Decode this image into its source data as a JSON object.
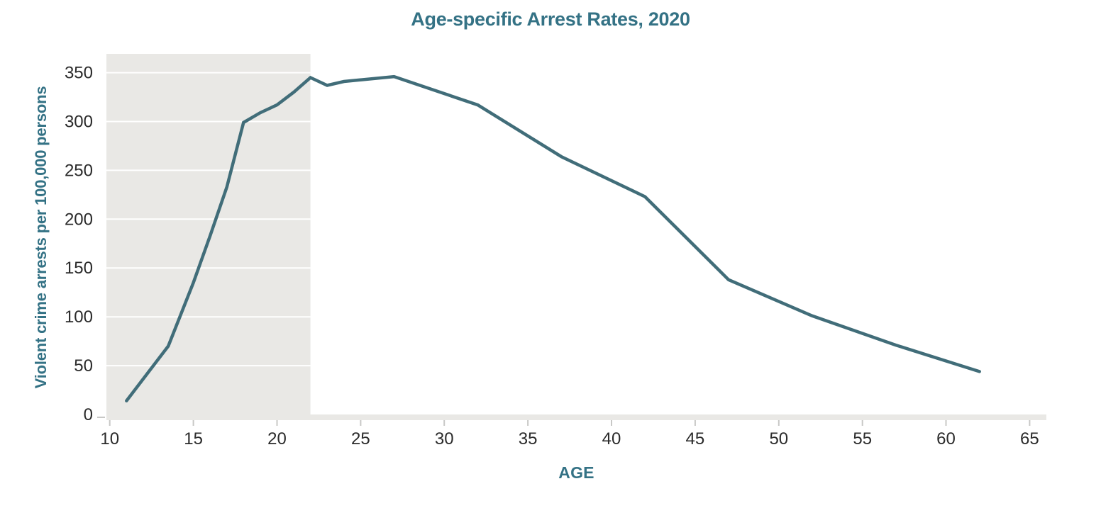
{
  "chart_data": {
    "type": "line",
    "title": "Age-specific Arrest Rates, 2020",
    "xlabel": "AGE",
    "ylabel": "Violent crime arrests per 100,000 persons",
    "x": [
      11,
      13.5,
      15,
      16,
      17,
      18,
      19,
      20,
      21,
      22,
      23,
      24,
      27,
      32,
      37,
      42,
      47,
      52,
      57,
      62
    ],
    "values": [
      14,
      70,
      135,
      183,
      233,
      299,
      309,
      317,
      330,
      345,
      337,
      341,
      346,
      317,
      264,
      223,
      138,
      101,
      71,
      44
    ],
    "x_ticks": [
      10,
      15,
      20,
      25,
      30,
      35,
      40,
      45,
      50,
      55,
      60,
      65
    ],
    "y_ticks": [
      0,
      50,
      100,
      150,
      200,
      250,
      300,
      350
    ],
    "xlim": [
      9.8,
      66
    ],
    "ylim": [
      0,
      370
    ],
    "shaded_x_range": [
      9.8,
      22
    ],
    "legend": "none",
    "grid": "horizontal gridlines, white, visible only inside shaded band",
    "colors": {
      "line": "#416d79",
      "shade": "#e9e8e5",
      "axis_band": "#e9e8e5",
      "gridline": "#ffffff",
      "title": "#347285",
      "tick_label": "#2b2b2b",
      "tick_mark": "#c8c8c6"
    }
  }
}
